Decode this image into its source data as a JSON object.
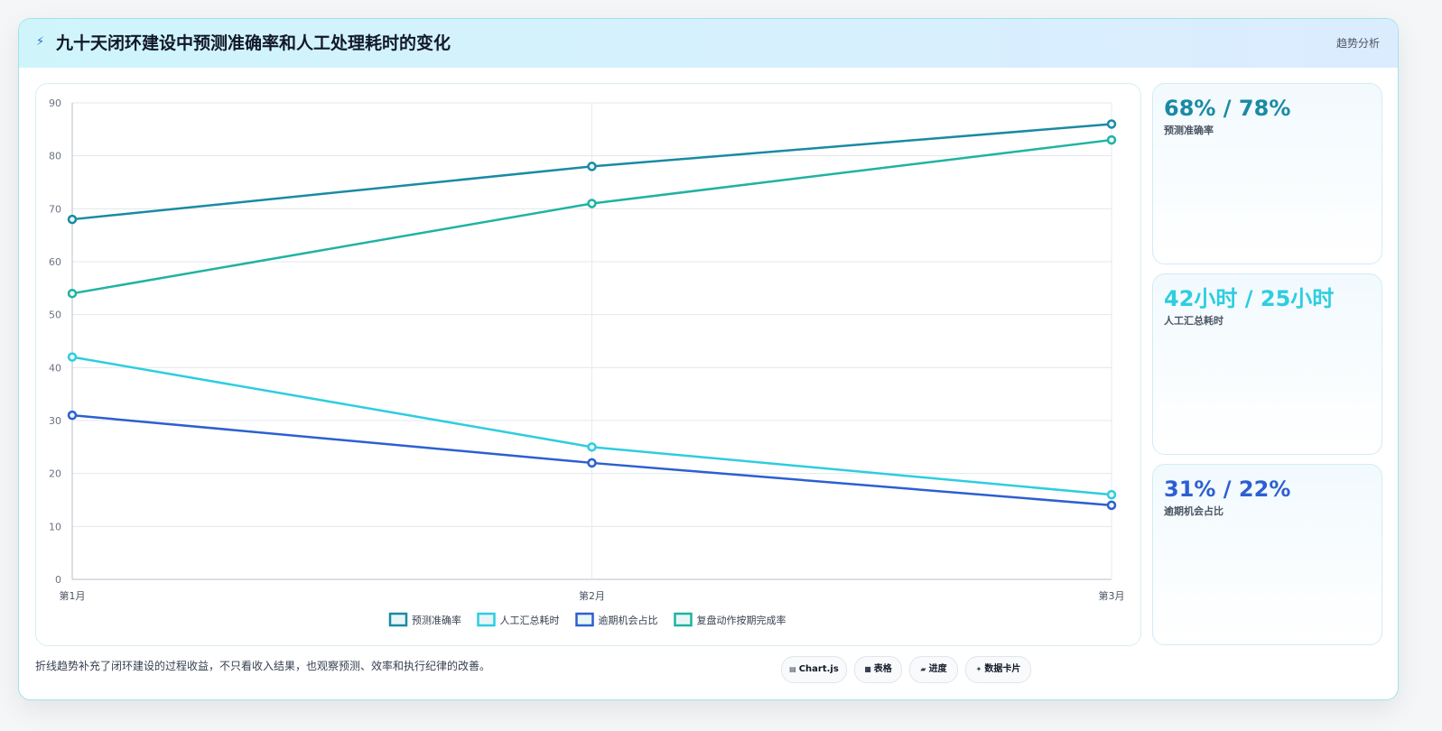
{
  "header": {
    "icon": "lightning-icon",
    "title": "九十天闭环建设中预测准确率和人工处理耗时的变化",
    "tag": "趋势分析"
  },
  "chart_data": {
    "type": "line",
    "categories": [
      "第1月",
      "第2月",
      "第3月"
    ],
    "ylim": [
      0,
      90
    ],
    "yticks": [
      0,
      10,
      20,
      30,
      40,
      50,
      60,
      70,
      80,
      90
    ],
    "grid": true,
    "legend_position": "bottom",
    "series": [
      {
        "name": "预测准确率",
        "color": "#1a8aa3",
        "values": [
          68,
          78,
          86
        ]
      },
      {
        "name": "人工汇总耗时",
        "color": "#2ecde0",
        "values": [
          42,
          25,
          16
        ]
      },
      {
        "name": "逾期机会占比",
        "color": "#2d5fd0",
        "values": [
          31,
          22,
          14
        ]
      },
      {
        "name": "复盘动作按期完成率",
        "color": "#1fb3a0",
        "values": [
          54,
          71,
          83
        ]
      }
    ]
  },
  "stats": [
    {
      "value": "68% / 78%",
      "label": "预测准确率",
      "color": "#1a8aa3"
    },
    {
      "value": "42小时 / 25小时",
      "label": "人工汇总耗时",
      "color": "#2ecde0"
    },
    {
      "value": "31% / 22%",
      "label": "逾期机会占比",
      "color": "#2d5fd0"
    }
  ],
  "footnote": "折线趋势补充了闭环建设的过程收益，不只看收入结果，也观察预测、效率和执行纪律的改善。",
  "pills": [
    {
      "icon": "chart-icon",
      "glyph": "▤",
      "label": "Chart.js"
    },
    {
      "icon": "table-icon",
      "glyph": "■",
      "label": "表格"
    },
    {
      "icon": "progress-icon",
      "glyph": "▰",
      "label": "进度"
    },
    {
      "icon": "card-icon",
      "glyph": "✦",
      "label": "数据卡片"
    }
  ]
}
